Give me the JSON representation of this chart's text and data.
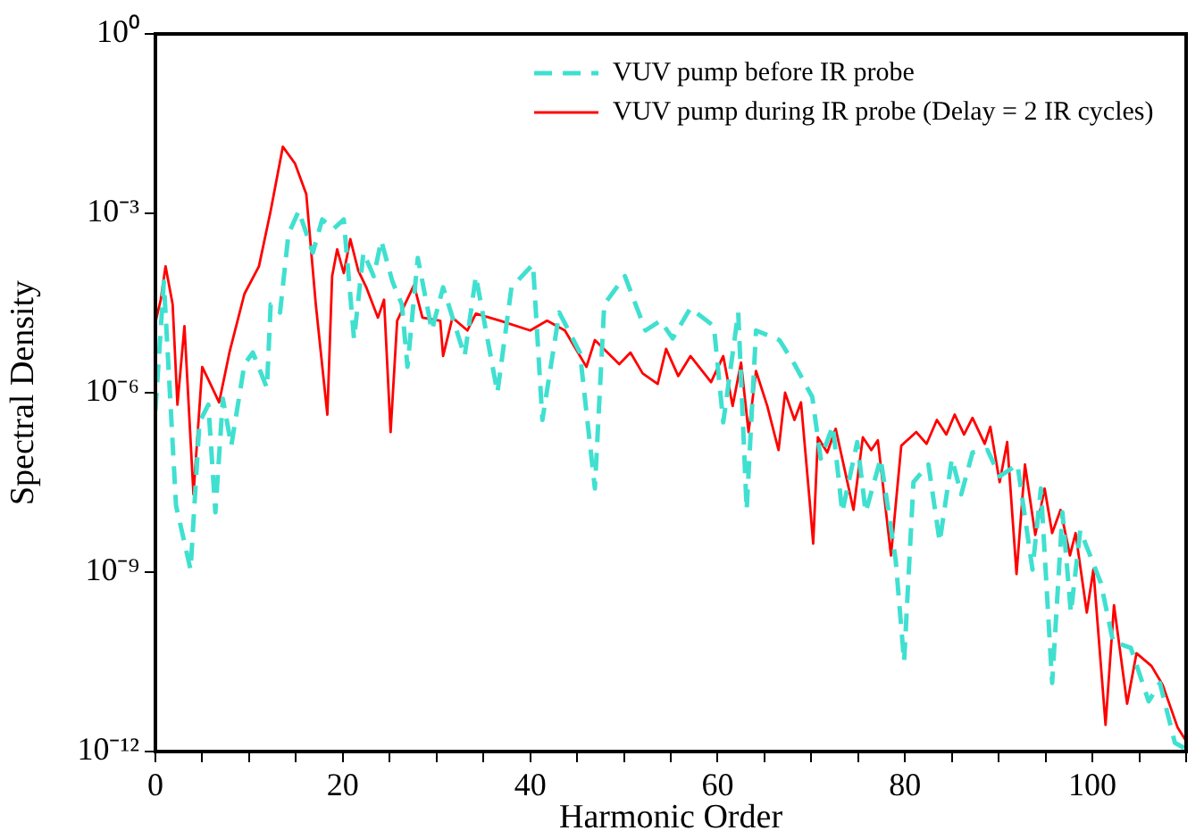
{
  "chart_data": {
    "type": "line",
    "xlabel": "Harmonic Order",
    "ylabel": "Spectral Density",
    "log": "y",
    "xlim": [
      0,
      110
    ],
    "ylim": [
      1e-12,
      1
    ],
    "xticks": [
      0,
      {
        "value": 5,
        "label": null
      },
      {
        "value": 10,
        "label": null
      },
      {
        "value": 15,
        "label": null
      },
      20,
      {
        "value": 25,
        "label": null
      },
      {
        "value": 30,
        "label": null
      },
      {
        "value": 35,
        "label": null
      },
      40,
      {
        "value": 45,
        "label": null
      },
      {
        "value": 50,
        "label": null
      },
      {
        "value": 55,
        "label": null
      },
      60,
      {
        "value": 65,
        "label": null
      },
      {
        "value": 70,
        "label": null
      },
      {
        "value": 75,
        "label": null
      },
      80,
      {
        "value": 85,
        "label": null
      },
      {
        "value": 90,
        "label": null
      },
      {
        "value": 95,
        "label": null
      },
      100,
      {
        "value": 105,
        "label": null
      },
      {
        "value": 110,
        "label": null
      }
    ],
    "yticks": [
      {
        "value": 1e-12,
        "label": "10⁻¹²"
      },
      {
        "value": 1e-09,
        "label": "10⁻⁹"
      },
      {
        "value": 1e-06,
        "label": "10⁻⁶"
      },
      {
        "value": 0.001,
        "label": "10⁻³"
      },
      {
        "value": 1,
        "label": "10⁰"
      }
    ],
    "grid": false,
    "legend": "top right",
    "marker": "none",
    "series": [
      {
        "name": "VUV pump before IR probe",
        "color": "#40e0d0",
        "line_style": "dashed",
        "x": [
          0,
          0.9,
          2.2,
          3.75,
          4.7,
          5.65,
          6.4,
          7.2,
          8.1,
          9.5,
          10.4,
          11.9,
          12.3,
          13.3,
          14.2,
          15.3,
          16.8,
          17.8,
          19,
          20.1,
          21.2,
          22.2,
          23.3,
          24.1,
          25.3,
          26.3,
          26.9,
          28,
          29.5,
          30.7,
          33,
          34.2,
          36.5,
          38,
          40.3,
          41.3,
          43.1,
          45.3,
          46.9,
          47.9,
          50.1,
          52.3,
          53.9,
          55.2,
          57.1,
          59.6,
          60.6,
          62.2,
          63.1,
          64.1,
          66.6,
          68.2,
          70.1,
          71,
          72.3,
          73.3,
          74.9,
          75.8,
          77.4,
          79,
          79.9,
          80.9,
          82.5,
          83.7,
          85,
          86,
          87.2,
          88.8,
          90.1,
          92,
          93.6,
          94.5,
          95.7,
          96.8,
          97.7,
          98.7,
          100.9,
          102.2,
          104.1,
          106,
          107.2,
          108.8,
          110
        ],
        "values": [
          5e-07,
          7.2e-05,
          1.3e-08,
          1.1e-09,
          3.2e-07,
          6.3e-07,
          1e-08,
          7.9e-07,
          1.3e-07,
          3e-06,
          4.7e-06,
          1.2e-06,
          3e-05,
          2.2e-05,
          0.00045,
          0.0011,
          0.00022,
          0.00079,
          0.00055,
          0.00079,
          7.9e-06,
          0.00022,
          8.9e-05,
          0.00035,
          7.2e-05,
          3e-05,
          2.7e-06,
          0.00018,
          1.1e-05,
          5.8e-05,
          4.1e-06,
          8.9e-05,
          1e-06,
          5.8e-05,
          0.00014,
          3.5e-07,
          2.2e-05,
          4.7e-06,
          2.5e-08,
          3e-05,
          8.9e-05,
          1.1e-05,
          1.6e-05,
          8.1e-06,
          2.6e-05,
          1.3e-05,
          3.2e-07,
          2.2e-05,
          1.1e-08,
          1.1e-05,
          7.6e-06,
          3e-06,
          8.5e-07,
          7.9e-08,
          2.8e-07,
          1e-08,
          1.5e-07,
          1e-08,
          7.9e-08,
          1.6e-09,
          3.2e-11,
          3.2e-08,
          6.3e-08,
          3.2e-09,
          7.9e-08,
          2e-08,
          1e-07,
          1.1e-07,
          4e-08,
          6.3e-08,
          1.1e-09,
          2.5e-08,
          1.4e-11,
          1e-08,
          2.1e-10,
          5e-09,
          6.6e-10,
          6.9e-11,
          5.4e-11,
          6.9e-12,
          1.4e-11,
          1.4e-12,
          1.1e-12
        ]
      },
      {
        "name": "VUV pump during IR probe (Delay = 2 IR cycles)",
        "color": "#ff0000",
        "line_style": "solid",
        "x": [
          0,
          0.57,
          1.08,
          1.84,
          2.35,
          3.1,
          4.06,
          5,
          5.97,
          6.8,
          7.9,
          9.5,
          11.05,
          12.3,
          13.6,
          14.9,
          16.1,
          17.1,
          17.7,
          18.35,
          18.86,
          19.4,
          20.1,
          20.8,
          21.65,
          22.5,
          23.75,
          24.4,
          25.1,
          25.8,
          27.6,
          28.5,
          30.4,
          30.7,
          31.7,
          33.3,
          34.2,
          36.8,
          40,
          41.8,
          43.7,
          46,
          46.9,
          49.5,
          50.7,
          52,
          53.6,
          54.5,
          55.8,
          57.1,
          59.3,
          60.6,
          61.6,
          62.5,
          63.3,
          64.1,
          65.3,
          66.5,
          67.2,
          68.2,
          68.9,
          69.8,
          70.2,
          70.7,
          71.7,
          72.6,
          74.5,
          75.5,
          76.4,
          77.1,
          78.5,
          79.6,
          81.2,
          82.3,
          83.4,
          84.4,
          85.3,
          86.3,
          87.2,
          88.5,
          89.1,
          90.1,
          90.9,
          91.9,
          92.8,
          93.9,
          94.9,
          95.7,
          96.6,
          97.6,
          98.2,
          99.4,
          100.1,
          101.4,
          102.3,
          103.7,
          104.7,
          106.3,
          107.5,
          109.1,
          110
        ],
        "values": [
          1.5e-05,
          3.6e-05,
          0.00013,
          3e-05,
          6.3e-07,
          1.3e-05,
          2e-08,
          2.7e-06,
          1.3e-06,
          6.9e-07,
          4.7e-06,
          4.5e-05,
          0.00013,
          0.0011,
          0.013,
          0.0068,
          0.0021,
          3.2e-05,
          4e-06,
          4.3e-07,
          8.9e-05,
          0.00025,
          0.0001,
          0.00037,
          0.00011,
          5.8e-05,
          1.8e-05,
          3.6e-05,
          2.2e-07,
          1.6e-05,
          6.3e-05,
          1.8e-05,
          1.6e-05,
          4.1e-06,
          1.8e-05,
          1.1e-05,
          2.1e-05,
          1.6e-05,
          1.1e-05,
          1.6e-05,
          1.1e-05,
          2.7e-06,
          7.6e-06,
          3e-06,
          4.7e-06,
          2.1e-06,
          1.4e-06,
          5.4e-06,
          1.9e-06,
          4.1e-06,
          1.5e-06,
          4.1e-06,
          6e-07,
          3.2e-06,
          2.2e-07,
          2.3e-06,
          6e-07,
          1.1e-07,
          1e-06,
          3.5e-07,
          6.9e-07,
          1.7e-08,
          3e-09,
          1.8e-07,
          1e-07,
          2.5e-07,
          1.1e-08,
          1.8e-07,
          1.1e-07,
          1.6e-07,
          1.9e-09,
          1.3e-07,
          2.2e-07,
          1.4e-07,
          3.5e-07,
          2e-07,
          4.3e-07,
          2e-07,
          3.8e-07,
          1.4e-07,
          2.7e-07,
          3.2e-08,
          1.5e-07,
          9.3e-10,
          6.3e-08,
          4.2e-09,
          2.5e-08,
          4.5e-09,
          1.1e-08,
          1.9e-09,
          4.5e-09,
          2.1e-10,
          1.1e-09,
          2.8e-12,
          2.8e-10,
          6.3e-12,
          4.4e-11,
          2.7e-11,
          1.3e-11,
          2.5e-12,
          1.5e-12
        ]
      }
    ]
  }
}
